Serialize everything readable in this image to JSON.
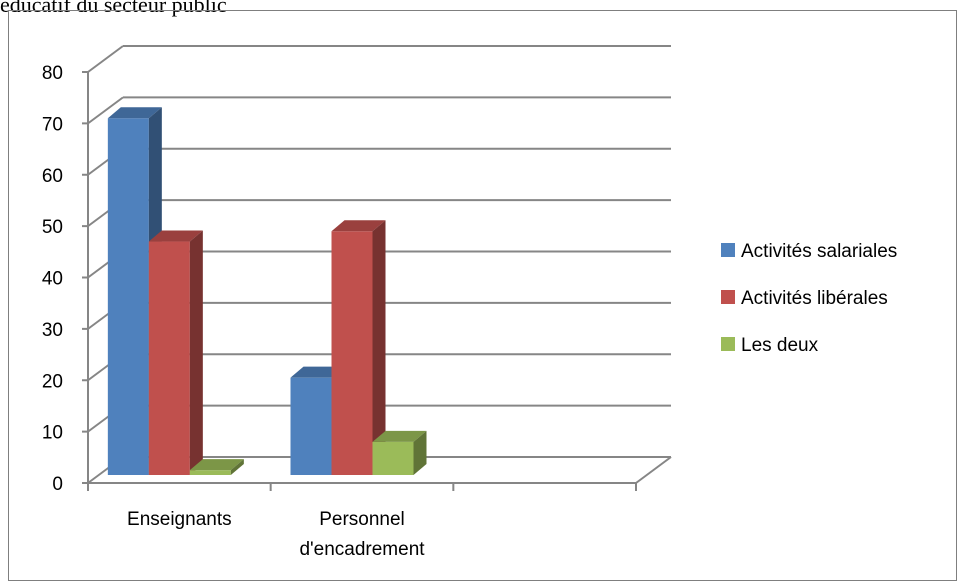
{
  "caption": "éducatif du secteur public",
  "chart_data": {
    "type": "bar",
    "categories": [
      "Enseignants",
      "Personnel d'encadrement",
      ""
    ],
    "category_lines": [
      [
        "Enseignants"
      ],
      [
        "Personnel",
        "d'encadrement"
      ],
      []
    ],
    "series": [
      {
        "name": "Activités salariales",
        "values": [
          71,
          20.5,
          null
        ],
        "color": "#4F81BD"
      },
      {
        "name": "Activités libérales",
        "values": [
          47,
          49,
          null
        ],
        "color": "#C0504D"
      },
      {
        "name": "Les deux",
        "values": [
          2.5,
          8,
          null
        ],
        "color": "#9BBB59"
      }
    ],
    "ylim": [
      0,
      80
    ],
    "yticks": [
      0,
      10,
      20,
      30,
      40,
      50,
      60,
      70,
      80
    ],
    "grid": true,
    "legend_position": "right",
    "title": "",
    "xlabel": "",
    "ylabel": ""
  }
}
